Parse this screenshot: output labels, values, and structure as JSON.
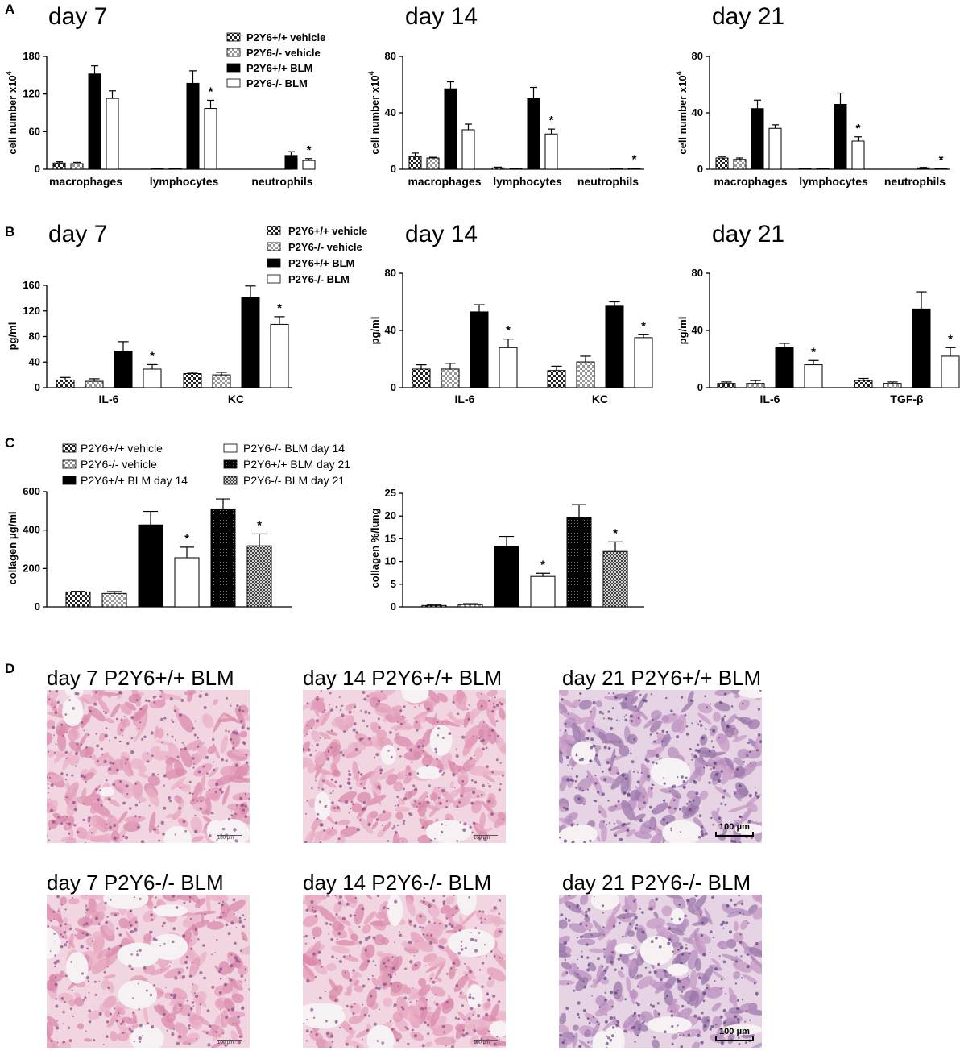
{
  "panel_letters": [
    "A",
    "B",
    "C",
    "D"
  ],
  "legend_ab": [
    "P2Y6+/+ vehicle",
    "P2Y6-/- vehicle",
    "P2Y6+/+ BLM",
    "P2Y6-/- BLM"
  ],
  "legend_c": [
    "P2Y6+/+ vehicle",
    "P2Y6-/- vehicle",
    "P2Y6+/+ BLM day 14",
    "P2Y6-/- BLM day 14",
    "P2Y6+/+ BLM day 21",
    "P2Y6-/- BLM day 21"
  ],
  "colors": {
    "bar_fill": "#000000",
    "open_fill": "#ffffff",
    "checker_dark": "#222222",
    "checker_light": "#aaaaaa",
    "tissue_pink": "#e8a9c2",
    "tissue_purple": "#a88ab8"
  },
  "chart_data": [
    {
      "id": "A-day7",
      "type": "bar",
      "title": "day 7",
      "ylabel": "cell number x10",
      "ylabel_sup": "4",
      "ylim": [
        0,
        180
      ],
      "yticks": [
        0,
        60,
        120,
        180
      ],
      "categories": [
        "macrophages",
        "lymphocytes",
        "neutrophils"
      ],
      "series": [
        {
          "values": [
            10,
            1,
            0
          ],
          "errors": [
            2,
            0.3,
            0
          ]
        },
        {
          "values": [
            9,
            1,
            0
          ],
          "errors": [
            2,
            0.3,
            0
          ]
        },
        {
          "values": [
            152,
            137,
            22
          ],
          "errors": [
            13,
            20,
            6
          ]
        },
        {
          "values": [
            113,
            97,
            14
          ],
          "errors": [
            12,
            13,
            3
          ]
        }
      ],
      "stars": [
        false,
        true,
        true
      ]
    },
    {
      "id": "A-day14",
      "type": "bar",
      "title": "day 14",
      "ylabel": "cell number x10",
      "ylabel_sup": "4",
      "ylim": [
        0,
        80
      ],
      "yticks": [
        0,
        40,
        80
      ],
      "categories": [
        "macrophages",
        "lymphocytes",
        "neutrophils"
      ],
      "series": [
        {
          "values": [
            9,
            1,
            0
          ],
          "errors": [
            2.5,
            0.5,
            0
          ]
        },
        {
          "values": [
            8,
            0.5,
            0
          ],
          "errors": [
            0.5,
            0.3,
            0
          ]
        },
        {
          "values": [
            57,
            50,
            0.5
          ],
          "errors": [
            5,
            8,
            0.3
          ]
        },
        {
          "values": [
            28,
            25,
            0.5
          ],
          "errors": [
            4,
            3.5,
            0.3
          ]
        }
      ],
      "stars": [
        false,
        true,
        true
      ]
    },
    {
      "id": "A-day21",
      "type": "bar",
      "title": "day 21",
      "ylabel": "cell number x10",
      "ylabel_sup": "4",
      "ylim": [
        0,
        80
      ],
      "yticks": [
        0,
        40,
        80
      ],
      "categories": [
        "macrophages",
        "lymphocytes",
        "neutrophils"
      ],
      "series": [
        {
          "values": [
            8,
            0.5,
            0
          ],
          "errors": [
            1,
            0.3,
            0
          ]
        },
        {
          "values": [
            7,
            0.3,
            0
          ],
          "errors": [
            1,
            0.2,
            0
          ]
        },
        {
          "values": [
            43,
            46,
            1
          ],
          "errors": [
            6,
            8,
            0.3
          ]
        },
        {
          "values": [
            29,
            20,
            0.3
          ],
          "errors": [
            2.5,
            3,
            0.2
          ]
        }
      ],
      "stars": [
        false,
        true,
        true
      ]
    },
    {
      "id": "B-day7",
      "type": "bar",
      "title": "day 7",
      "ylabel": "pg/ml",
      "ylim": [
        0,
        160
      ],
      "yticks": [
        0,
        40,
        80,
        120,
        160
      ],
      "categories": [
        "IL-6",
        "KC"
      ],
      "series": [
        {
          "values": [
            12,
            22
          ],
          "errors": [
            4,
            2
          ]
        },
        {
          "values": [
            10,
            20
          ],
          "errors": [
            4,
            4
          ]
        },
        {
          "values": [
            57,
            141
          ],
          "errors": [
            15,
            18
          ]
        },
        {
          "values": [
            29,
            99
          ],
          "errors": [
            7,
            12
          ]
        }
      ],
      "stars": [
        true,
        true
      ]
    },
    {
      "id": "B-day14",
      "type": "bar",
      "title": "day 14",
      "ylabel": "pg/ml",
      "ylim": [
        0,
        80
      ],
      "yticks": [
        0,
        40,
        80
      ],
      "categories": [
        "IL-6",
        "KC"
      ],
      "series": [
        {
          "values": [
            13,
            12
          ],
          "errors": [
            3,
            3
          ]
        },
        {
          "values": [
            13,
            18
          ],
          "errors": [
            4,
            4
          ]
        },
        {
          "values": [
            53,
            57
          ],
          "errors": [
            5,
            3
          ]
        },
        {
          "values": [
            28,
            35
          ],
          "errors": [
            6,
            2
          ]
        }
      ],
      "stars": [
        true,
        true
      ]
    },
    {
      "id": "B-day21",
      "type": "bar",
      "title": "day 21",
      "ylabel": "pg/ml",
      "ylim": [
        0,
        80
      ],
      "yticks": [
        0,
        40,
        80
      ],
      "categories": [
        "IL-6",
        "TGF-β"
      ],
      "series": [
        {
          "values": [
            3,
            5
          ],
          "errors": [
            1,
            1.5
          ]
        },
        {
          "values": [
            3,
            3
          ],
          "errors": [
            2,
            1
          ]
        },
        {
          "values": [
            28,
            55
          ],
          "errors": [
            3,
            12
          ]
        },
        {
          "values": [
            16,
            22
          ],
          "errors": [
            3,
            6
          ]
        }
      ],
      "stars": [
        true,
        true
      ]
    },
    {
      "id": "C-ugml",
      "type": "bar",
      "title": "",
      "ylabel": "collagen μg/ml",
      "ylim": [
        0,
        600
      ],
      "yticks": [
        0,
        200,
        400,
        600
      ],
      "values": [
        78,
        70,
        427,
        256,
        510,
        318
      ],
      "errors": [
        3,
        10,
        70,
        55,
        52,
        62
      ],
      "stars": [
        false,
        false,
        false,
        true,
        false,
        true
      ]
    },
    {
      "id": "C-pct",
      "type": "bar",
      "title": "",
      "ylabel": "collagen %/lung",
      "ylim": [
        0,
        25
      ],
      "yticks": [
        0,
        5,
        10,
        15,
        20,
        25
      ],
      "values": [
        0.3,
        0.5,
        13.3,
        6.7,
        19.7,
        12.2
      ],
      "errors": [
        0.1,
        0.2,
        2.2,
        0.7,
        2.8,
        2.1
      ],
      "stars": [
        false,
        false,
        false,
        true,
        false,
        true
      ]
    }
  ],
  "micrographs": [
    {
      "title": "day 7 P2Y6+/+ BLM",
      "scale": "100 μm",
      "scale_style": "small"
    },
    {
      "title": "day 14 P2Y6+/+ BLM",
      "scale": "100 μm",
      "scale_style": "small"
    },
    {
      "title": "day 21 P2Y6+/+ BLM",
      "scale": "100 μm",
      "scale_style": "bar"
    },
    {
      "title": "day 7 P2Y6-/- BLM",
      "scale": "100 μm",
      "scale_style": "small"
    },
    {
      "title": "day 14 P2Y6-/- BLM",
      "scale": "100 μm",
      "scale_style": "small"
    },
    {
      "title": "day 21 P2Y6-/- BLM",
      "scale": "100 μm",
      "scale_style": "bar"
    }
  ]
}
